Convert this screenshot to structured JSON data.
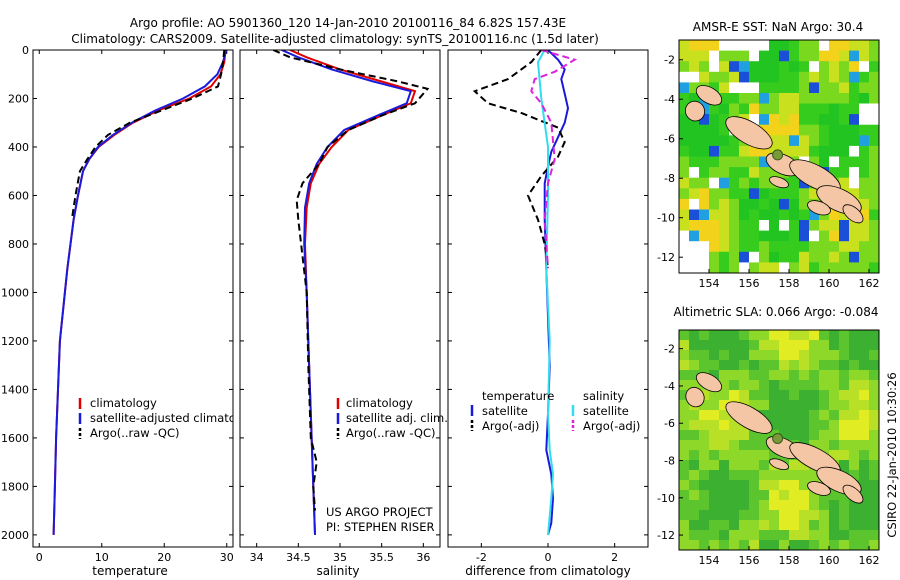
{
  "header": {
    "line1": "Argo profile: AO 5901360_120 14-Jan-2010 20100116_84 6.82S 157.43E",
    "line2": "Climatology: CARS2009. Satellite-adjusted climatology: synTS_20100116.nc (1.5d later)"
  },
  "colors": {
    "climatology": "#e00000",
    "satellite": "#1a1adc",
    "argo": "#000000",
    "salinity_sat": "#33ddee",
    "salinity_argo": "#dd22dd",
    "land": "#f5c6a5",
    "missing": "#ffffff"
  },
  "chart_data": [
    {
      "id": "temperature",
      "type": "line",
      "xlabel": "temperature",
      "xlim": [
        -1,
        31
      ],
      "ylim": [
        0,
        2050
      ],
      "xticks": [
        0,
        10,
        20,
        30
      ],
      "yticks": [
        0,
        200,
        400,
        600,
        800,
        1000,
        1200,
        1400,
        1600,
        1800,
        2000
      ],
      "y_reversed": true,
      "legend": [
        "climatology",
        "satellite-adjusted climatology",
        "Argo(..raw -QC)"
      ],
      "series": [
        {
          "name": "climatology",
          "style": "solid",
          "color": "#e00000",
          "x": [
            29.8,
            29.6,
            29.0,
            27.5,
            24.0,
            19.0,
            15.0,
            12.0,
            9.5,
            8.0,
            7.0,
            6.2,
            5.5,
            5.0,
            4.5,
            4.1,
            3.7,
            3.3,
            3.0,
            2.7,
            2.5,
            2.3
          ],
          "y": [
            0,
            50,
            100,
            150,
            200,
            250,
            300,
            350,
            400,
            450,
            500,
            600,
            700,
            800,
            900,
            1000,
            1100,
            1200,
            1400,
            1600,
            1800,
            2000
          ]
        },
        {
          "name": "satellite-adjusted climatology",
          "style": "solid",
          "color": "#1a1adc",
          "x": [
            29.9,
            29.4,
            28.5,
            26.5,
            23.0,
            18.5,
            14.8,
            11.8,
            9.4,
            8.0,
            7.0,
            6.2,
            5.5,
            5.0,
            4.5,
            4.1,
            3.7,
            3.3,
            3.0,
            2.7,
            2.5,
            2.3
          ],
          "y": [
            0,
            50,
            100,
            150,
            200,
            250,
            300,
            350,
            400,
            450,
            500,
            600,
            700,
            800,
            900,
            1000,
            1100,
            1200,
            1400,
            1600,
            1800,
            2000
          ]
        },
        {
          "name": "Argo(..raw -QC)",
          "style": "dashed",
          "color": "#000000",
          "x": [
            29.6,
            29.4,
            29.1,
            28.6,
            24.5,
            19.5,
            14.5,
            11.0,
            9.0,
            7.7,
            6.5,
            5.8,
            5.2
          ],
          "y": [
            0,
            50,
            100,
            150,
            200,
            250,
            300,
            350,
            400,
            450,
            500,
            600,
            700
          ]
        }
      ]
    },
    {
      "id": "salinity",
      "type": "line",
      "xlabel": "salinity",
      "xlim": [
        33.8,
        36.2
      ],
      "ylim": [
        0,
        2050
      ],
      "xticks": [
        34,
        34.5,
        35,
        35.5,
        36
      ],
      "y_reversed": true,
      "legend": [
        "climatology",
        "satellite adj. clim.",
        "Argo(..raw -QC)"
      ],
      "annotations": [
        "US ARGO PROJECT",
        "PI: STEPHEN RISER"
      ],
      "series": [
        {
          "name": "climatology",
          "style": "solid",
          "color": "#e00000",
          "x": [
            34.4,
            34.6,
            35.0,
            35.5,
            35.9,
            35.85,
            35.5,
            35.1,
            34.9,
            34.75,
            34.65,
            34.6,
            34.58,
            34.6,
            34.62,
            34.65,
            34.68,
            34.7
          ],
          "y": [
            0,
            30,
            80,
            130,
            170,
            220,
            270,
            330,
            400,
            470,
            550,
            650,
            800,
            1000,
            1200,
            1500,
            1800,
            2000
          ]
        },
        {
          "name": "satellite adj. clim.",
          "style": "solid",
          "color": "#1a1adc",
          "x": [
            34.3,
            34.5,
            34.9,
            35.4,
            35.85,
            35.8,
            35.45,
            35.05,
            34.85,
            34.72,
            34.63,
            34.58,
            34.57,
            34.6,
            34.62,
            34.65,
            34.68,
            34.7
          ],
          "y": [
            0,
            30,
            80,
            130,
            170,
            220,
            270,
            330,
            400,
            470,
            550,
            650,
            800,
            1000,
            1200,
            1500,
            1800,
            2000
          ]
        },
        {
          "name": "Argo(..raw -QC)",
          "style": "dashed",
          "color": "#000000",
          "x": [
            34.2,
            34.4,
            35.0,
            35.7,
            36.05,
            35.9,
            35.5,
            35.1,
            34.85,
            34.75,
            34.55,
            34.48,
            34.5,
            34.6,
            34.62,
            34.65,
            34.72,
            34.68,
            34.7
          ],
          "y": [
            0,
            30,
            80,
            130,
            160,
            220,
            270,
            330,
            400,
            470,
            550,
            620,
            700,
            1000,
            1300,
            1600,
            1700,
            1800,
            1900
          ]
        }
      ]
    },
    {
      "id": "difference",
      "type": "line",
      "xlabel": "difference from climatology",
      "xlim": [
        -3,
        3
      ],
      "ylim": [
        0,
        2050
      ],
      "xticks": [
        -2,
        0,
        2
      ],
      "y_reversed": true,
      "legend": [
        {
          "group": "temperature",
          "items": [
            "satellite",
            "Argo(-adj)"
          ]
        },
        {
          "group": "salinity",
          "items": [
            "satellite",
            "Argo(-adj)"
          ]
        }
      ],
      "series": [
        {
          "name": "temperature satellite",
          "style": "solid",
          "color": "#1a1adc",
          "x": [
            0.0,
            0.3,
            0.5,
            0.4,
            0.5,
            0.6,
            0.5,
            0.3,
            0.1,
            0.0,
            -0.1,
            -0.1,
            -0.05,
            0.0,
            0.05,
            0.0,
            -0.05,
            0.1,
            0.15,
            0.1,
            0.0
          ],
          "y": [
            0,
            40,
            80,
            120,
            180,
            240,
            300,
            360,
            420,
            480,
            550,
            700,
            900,
            1100,
            1300,
            1500,
            1650,
            1750,
            1850,
            1950,
            2000
          ]
        },
        {
          "name": "temperature Argo(-adj)",
          "style": "dashed",
          "color": "#000000",
          "x": [
            -0.2,
            -0.5,
            -1.2,
            -2.2,
            -1.8,
            -0.8,
            0.3,
            0.5,
            0.3,
            -0.2,
            -0.6,
            -0.3,
            -0.1,
            0.0
          ],
          "y": [
            0,
            50,
            120,
            170,
            220,
            260,
            320,
            380,
            440,
            520,
            600,
            700,
            800,
            900
          ]
        },
        {
          "name": "salinity satellite",
          "style": "solid",
          "color": "#33ddee",
          "x": [
            -0.1,
            -0.3,
            -0.2,
            0.0,
            0.0,
            -0.05,
            0.05,
            0.0,
            0.05,
            0.15,
            0.1,
            0.0
          ],
          "y": [
            0,
            50,
            200,
            400,
            600,
            900,
            1200,
            1500,
            1650,
            1750,
            1850,
            2000
          ]
        },
        {
          "name": "salinity Argo(-adj)",
          "style": "dashed",
          "color": "#dd22dd",
          "x": [
            -0.2,
            0.8,
            0.2,
            -0.4,
            -0.5,
            -0.2,
            0.1,
            0.2,
            0.0,
            -0.1,
            0.0
          ],
          "y": [
            0,
            40,
            90,
            120,
            170,
            220,
            300,
            450,
            550,
            700,
            900
          ]
        }
      ]
    },
    {
      "id": "sst_map",
      "type": "heatmap",
      "title": "AMSR-E SST: NaN Argo: 30.4",
      "xlim": [
        152.5,
        162.5
      ],
      "ylim": [
        -12.8,
        -1.0
      ],
      "xticks": [
        154,
        156,
        158,
        160,
        162
      ],
      "yticks": [
        -2,
        -4,
        -6,
        -8,
        -10,
        -12
      ],
      "marker": {
        "lon": 157.43,
        "lat": -6.82
      }
    },
    {
      "id": "sla_map",
      "type": "heatmap",
      "title": "Altimetric SLA: 0.066 Argo: -0.084",
      "xlim": [
        152.5,
        162.5
      ],
      "ylim": [
        -12.8,
        -1.0
      ],
      "xticks": [
        154,
        156,
        158,
        160,
        162
      ],
      "yticks": [
        -2,
        -4,
        -6,
        -8,
        -10,
        -12
      ],
      "marker": {
        "lon": 157.43,
        "lat": -6.82
      }
    }
  ],
  "stamp": "CSIRO 22-Jan-2010 10:30:26"
}
